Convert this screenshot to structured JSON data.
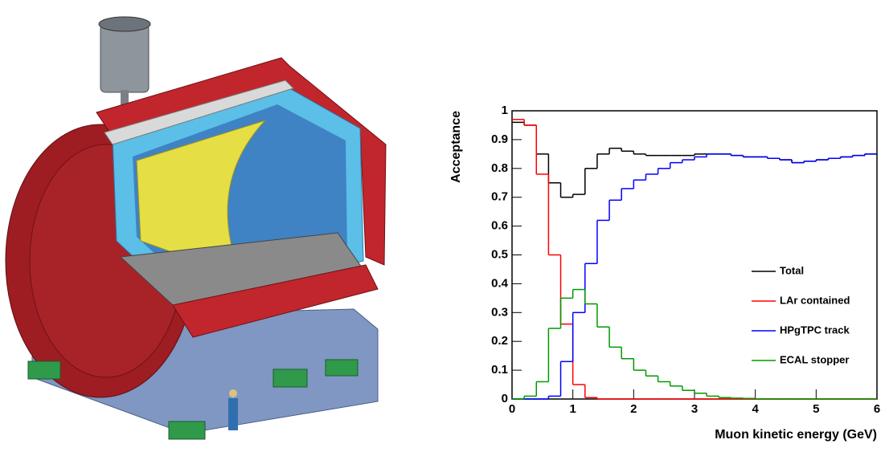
{
  "chart_data": {
    "type": "histogram",
    "xlabel": "Muon kinetic energy (GeV)",
    "ylabel": "Acceptance",
    "bins": [
      0,
      0.2,
      0.4,
      0.6,
      0.8,
      1,
      1.2,
      1.4,
      1.6,
      1.8,
      2,
      2.2,
      2.4,
      2.6,
      2.8,
      3,
      3.2,
      3.4,
      3.6,
      3.8,
      4,
      4.2,
      4.4,
      4.6,
      4.8,
      5,
      5.2,
      5.4,
      5.6,
      5.8,
      6
    ],
    "series": [
      {
        "name": "Total",
        "color": "#000000",
        "values": [
          0.96,
          0.95,
          0.85,
          0.75,
          0.7,
          0.71,
          0.8,
          0.85,
          0.87,
          0.86,
          0.85,
          0.845,
          0.845,
          0.845,
          0.845,
          0.85,
          0.85,
          0.85,
          0.845,
          0.84,
          0.84,
          0.835,
          0.83,
          0.82,
          0.825,
          0.83,
          0.835,
          0.84,
          0.845,
          0.85
        ]
      },
      {
        "name": "LAr contained",
        "color": "#ff0000",
        "values": [
          0.97,
          0.95,
          0.78,
          0.5,
          0.26,
          0.05,
          0.005,
          0,
          0,
          0,
          0,
          0,
          0,
          0,
          0,
          0,
          0,
          0,
          0,
          0,
          0,
          0,
          0,
          0,
          0,
          0,
          0,
          0,
          0,
          0
        ]
      },
      {
        "name": "HPgTPC track",
        "color": "#0000ff",
        "values": [
          0,
          0,
          0,
          0.01,
          0.13,
          0.3,
          0.47,
          0.62,
          0.69,
          0.73,
          0.76,
          0.78,
          0.8,
          0.82,
          0.83,
          0.84,
          0.85,
          0.85,
          0.845,
          0.84,
          0.84,
          0.835,
          0.83,
          0.82,
          0.825,
          0.83,
          0.835,
          0.84,
          0.845,
          0.85
        ]
      },
      {
        "name": "ECAL stopper",
        "color": "#009900",
        "values": [
          0,
          0.01,
          0.06,
          0.245,
          0.35,
          0.38,
          0.33,
          0.25,
          0.18,
          0.14,
          0.1,
          0.08,
          0.06,
          0.045,
          0.03,
          0.02,
          0.01,
          0.005,
          0.003,
          0.002,
          0,
          0,
          0,
          0,
          0,
          0,
          0,
          0,
          0,
          0
        ]
      }
    ],
    "xlim": [
      0,
      6
    ],
    "xticks": [
      0,
      1,
      2,
      3,
      4,
      5,
      6
    ],
    "ylim": [
      0,
      1
    ],
    "yticks": [
      0,
      0.1,
      0.2,
      0.3,
      0.4,
      0.5,
      0.6,
      0.7,
      0.8,
      0.9,
      1
    ],
    "legend": "lower right"
  }
}
